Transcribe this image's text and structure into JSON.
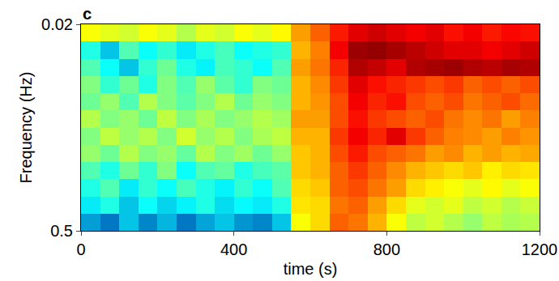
{
  "chart_data": {
    "type": "heatmap",
    "annotations": [
      "c"
    ],
    "x_label": "time (s)",
    "y_label": "Frequency (Hz)",
    "log": "y",
    "color": "Jet",
    "xlim": [
      0,
      1200
    ],
    "xticks": [
      0,
      400,
      800,
      1200
    ],
    "ylim": [
      0.5,
      0.02
    ],
    "yticks": [
      0.02,
      0.5
    ],
    "zlim": [
      0,
      1
    ],
    "x": [
      0,
      50,
      100,
      150,
      200,
      250,
      300,
      350,
      400,
      450,
      500,
      550,
      600,
      650,
      700,
      750,
      800,
      850,
      900,
      950,
      1000,
      1050,
      1100,
      1150,
      1200
    ],
    "y": [
      0.02,
      0.0262,
      0.0342,
      0.0447,
      0.0585,
      0.0765,
      0.1,
      0.1308,
      0.1711,
      0.2237,
      0.2925,
      0.3826,
      0.5
    ],
    "z": [
      [
        0.62,
        0.6,
        0.58,
        0.62,
        0.6,
        0.55,
        0.6,
        0.58,
        0.62,
        0.6,
        0.63,
        0.72,
        0.78,
        0.85,
        0.9,
        0.92,
        0.9,
        0.88,
        0.9,
        0.86,
        0.88,
        0.85,
        0.87,
        0.86
      ],
      [
        0.4,
        0.3,
        0.45,
        0.38,
        0.42,
        0.35,
        0.4,
        0.44,
        0.38,
        0.4,
        0.42,
        0.7,
        0.75,
        0.88,
        0.97,
        0.98,
        0.96,
        0.94,
        0.92,
        0.9,
        0.9,
        0.88,
        0.9,
        0.92
      ],
      [
        0.45,
        0.38,
        0.3,
        0.42,
        0.48,
        0.4,
        0.36,
        0.44,
        0.42,
        0.38,
        0.45,
        0.72,
        0.76,
        0.84,
        0.95,
        0.93,
        0.9,
        0.95,
        0.96,
        0.97,
        0.95,
        0.94,
        0.96,
        0.95
      ],
      [
        0.5,
        0.42,
        0.48,
        0.4,
        0.5,
        0.45,
        0.52,
        0.46,
        0.42,
        0.5,
        0.48,
        0.7,
        0.74,
        0.82,
        0.9,
        0.86,
        0.84,
        0.82,
        0.8,
        0.82,
        0.78,
        0.8,
        0.78,
        0.8
      ],
      [
        0.48,
        0.52,
        0.45,
        0.55,
        0.5,
        0.46,
        0.5,
        0.55,
        0.48,
        0.52,
        0.5,
        0.7,
        0.73,
        0.8,
        0.88,
        0.84,
        0.86,
        0.8,
        0.78,
        0.8,
        0.76,
        0.78,
        0.8,
        0.77
      ],
      [
        0.55,
        0.5,
        0.52,
        0.48,
        0.56,
        0.5,
        0.54,
        0.5,
        0.52,
        0.55,
        0.53,
        0.72,
        0.72,
        0.8,
        0.86,
        0.82,
        0.8,
        0.78,
        0.8,
        0.76,
        0.74,
        0.76,
        0.72,
        0.75
      ],
      [
        0.5,
        0.56,
        0.52,
        0.55,
        0.5,
        0.58,
        0.52,
        0.55,
        0.5,
        0.54,
        0.56,
        0.7,
        0.7,
        0.82,
        0.88,
        0.84,
        0.9,
        0.82,
        0.78,
        0.75,
        0.74,
        0.72,
        0.75,
        0.73
      ],
      [
        0.52,
        0.48,
        0.55,
        0.5,
        0.52,
        0.47,
        0.55,
        0.5,
        0.53,
        0.48,
        0.52,
        0.68,
        0.7,
        0.8,
        0.85,
        0.8,
        0.78,
        0.76,
        0.72,
        0.74,
        0.7,
        0.72,
        0.7,
        0.71
      ],
      [
        0.45,
        0.4,
        0.48,
        0.42,
        0.5,
        0.38,
        0.45,
        0.47,
        0.4,
        0.44,
        0.46,
        0.68,
        0.7,
        0.78,
        0.82,
        0.78,
        0.74,
        0.7,
        0.68,
        0.66,
        0.68,
        0.64,
        0.66,
        0.65
      ],
      [
        0.4,
        0.45,
        0.35,
        0.42,
        0.38,
        0.44,
        0.4,
        0.36,
        0.42,
        0.38,
        0.45,
        0.66,
        0.68,
        0.78,
        0.8,
        0.76,
        0.72,
        0.66,
        0.64,
        0.62,
        0.6,
        0.63,
        0.6,
        0.62
      ],
      [
        0.35,
        0.4,
        0.3,
        0.38,
        0.32,
        0.36,
        0.4,
        0.33,
        0.37,
        0.35,
        0.4,
        0.65,
        0.66,
        0.76,
        0.78,
        0.72,
        0.66,
        0.6,
        0.58,
        0.6,
        0.56,
        0.58,
        0.55,
        0.57
      ],
      [
        0.25,
        0.2,
        0.3,
        0.22,
        0.28,
        0.2,
        0.26,
        0.3,
        0.24,
        0.22,
        0.3,
        0.62,
        0.66,
        0.78,
        0.76,
        0.7,
        0.62,
        0.56,
        0.58,
        0.55,
        0.52,
        0.56,
        0.54,
        0.55
      ]
    ]
  }
}
